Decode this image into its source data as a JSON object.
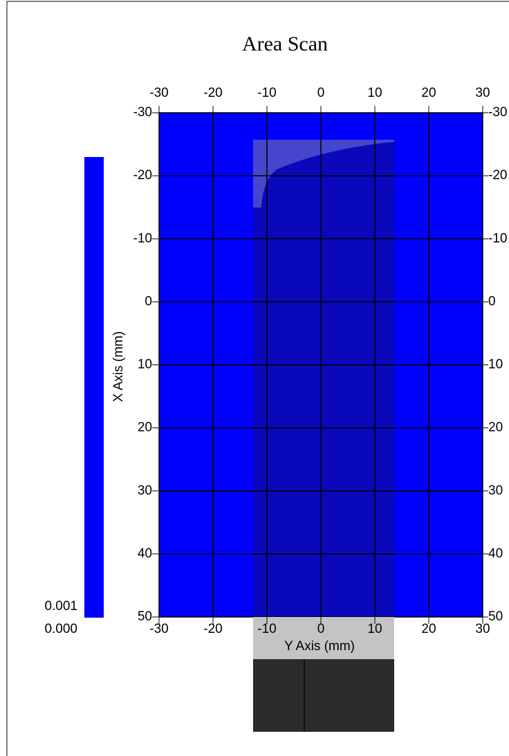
{
  "chart_data": {
    "type": "heatmap",
    "title": "Area Scan",
    "xlabel": "Y Axis (mm)",
    "ylabel": "X Axis (mm)",
    "xlim": [
      -30,
      30
    ],
    "xticks": [
      -30,
      -20,
      -10,
      0,
      10,
      20,
      30
    ],
    "ylim": [
      -30,
      50
    ],
    "yticks": [
      -30,
      -20,
      -10,
      0,
      10,
      20,
      30,
      40,
      50
    ],
    "y_inverted": true,
    "values": [
      [
        0
      ]
    ],
    "color": "#0000ff",
    "grid": true,
    "colorbar": {
      "ticks": [
        {
          "value": 0.001,
          "label": "0.001"
        },
        {
          "value": 0,
          "label": "0.000"
        }
      ]
    }
  }
}
